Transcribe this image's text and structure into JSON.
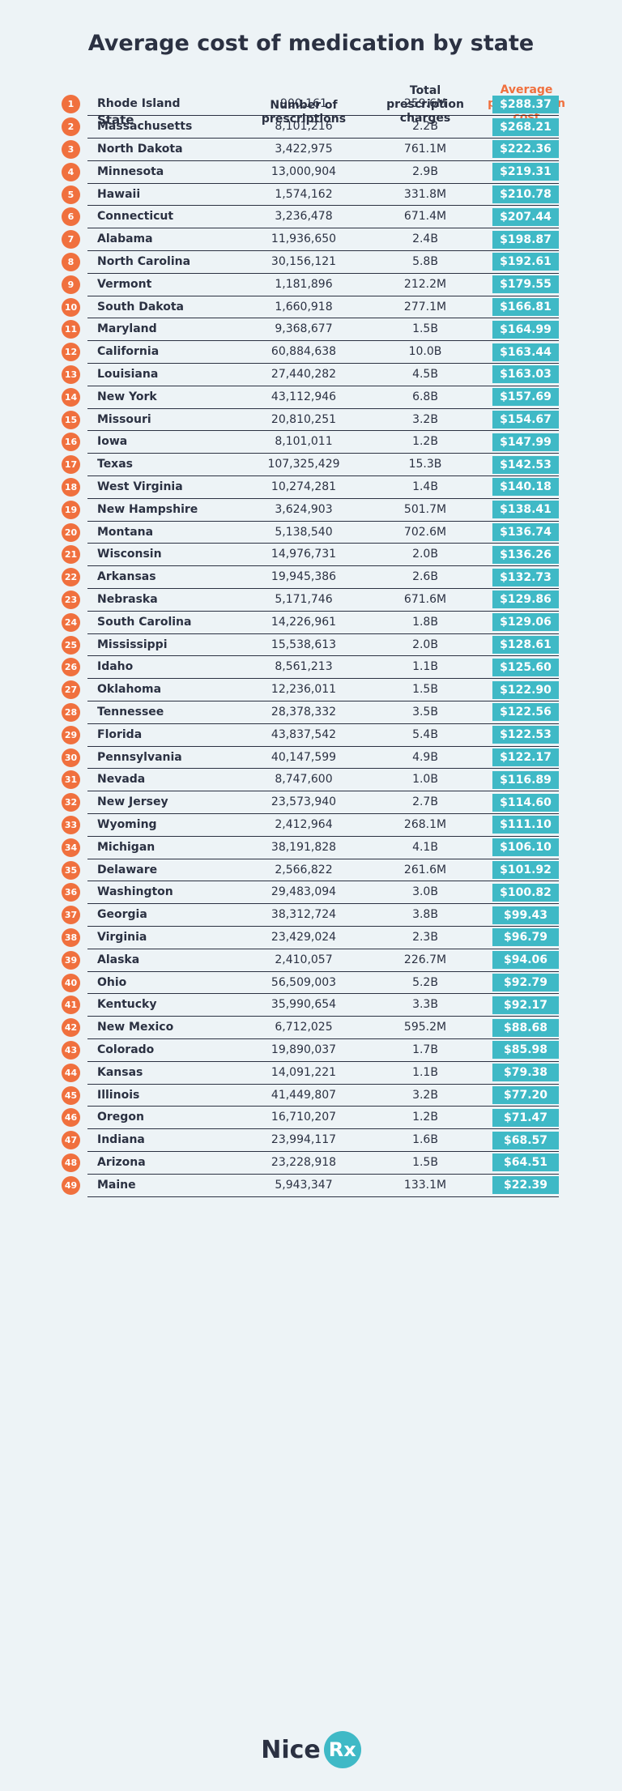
{
  "chart_data": {
    "type": "table",
    "title": "Average cost of medication by state",
    "columns": [
      "State",
      "Number of prescriptions",
      "Total prescription charges",
      "Average prescription cost"
    ],
    "header_lines": {
      "state": "State",
      "prescriptions": [
        "Number of",
        "prescriptions"
      ],
      "charges": [
        "Total",
        "prescription",
        "charges"
      ],
      "average": [
        "Average",
        "prescription",
        "cost"
      ]
    },
    "rows": [
      {
        "rank": "1",
        "state": "Rhode Island",
        "prescriptions": "900,161",
        "charges": "259.6M",
        "average": "$288.37"
      },
      {
        "rank": "2",
        "state": "Massachusetts",
        "prescriptions": "8,101,216",
        "charges": "2.2B",
        "average": "$268.21"
      },
      {
        "rank": "3",
        "state": "North Dakota",
        "prescriptions": "3,422,975",
        "charges": "761.1M",
        "average": "$222.36"
      },
      {
        "rank": "4",
        "state": "Minnesota",
        "prescriptions": "13,000,904",
        "charges": "2.9B",
        "average": "$219.31"
      },
      {
        "rank": "5",
        "state": "Hawaii",
        "prescriptions": "1,574,162",
        "charges": "331.8M",
        "average": "$210.78"
      },
      {
        "rank": "6",
        "state": "Connecticut",
        "prescriptions": "3,236,478",
        "charges": "671.4M",
        "average": "$207.44"
      },
      {
        "rank": "7",
        "state": "Alabama",
        "prescriptions": "11,936,650",
        "charges": "2.4B",
        "average": "$198.87"
      },
      {
        "rank": "8",
        "state": "North Carolina",
        "prescriptions": "30,156,121",
        "charges": "5.8B",
        "average": "$192.61"
      },
      {
        "rank": "9",
        "state": "Vermont",
        "prescriptions": "1,181,896",
        "charges": "212.2M",
        "average": "$179.55"
      },
      {
        "rank": "10",
        "state": "South Dakota",
        "prescriptions": "1,660,918",
        "charges": "277.1M",
        "average": "$166.81"
      },
      {
        "rank": "11",
        "state": "Maryland",
        "prescriptions": "9,368,677",
        "charges": "1.5B",
        "average": "$164.99"
      },
      {
        "rank": "12",
        "state": "California",
        "prescriptions": "60,884,638",
        "charges": "10.0B",
        "average": "$163.44"
      },
      {
        "rank": "13",
        "state": "Louisiana",
        "prescriptions": "27,440,282",
        "charges": "4.5B",
        "average": "$163.03"
      },
      {
        "rank": "14",
        "state": "New York",
        "prescriptions": "43,112,946",
        "charges": "6.8B",
        "average": "$157.69"
      },
      {
        "rank": "15",
        "state": "Missouri",
        "prescriptions": "20,810,251",
        "charges": "3.2B",
        "average": "$154.67"
      },
      {
        "rank": "16",
        "state": "Iowa",
        "prescriptions": "8,101,011",
        "charges": "1.2B",
        "average": "$147.99"
      },
      {
        "rank": "17",
        "state": "Texas",
        "prescriptions": "107,325,429",
        "charges": "15.3B",
        "average": "$142.53"
      },
      {
        "rank": "18",
        "state": "West Virginia",
        "prescriptions": "10,274,281",
        "charges": "1.4B",
        "average": "$140.18"
      },
      {
        "rank": "19",
        "state": "New Hampshire",
        "prescriptions": "3,624,903",
        "charges": "501.7M",
        "average": "$138.41"
      },
      {
        "rank": "20",
        "state": "Montana",
        "prescriptions": "5,138,540",
        "charges": "702.6M",
        "average": "$136.74"
      },
      {
        "rank": "21",
        "state": "Wisconsin",
        "prescriptions": "14,976,731",
        "charges": "2.0B",
        "average": "$136.26"
      },
      {
        "rank": "22",
        "state": "Arkansas",
        "prescriptions": "19,945,386",
        "charges": "2.6B",
        "average": "$132.73"
      },
      {
        "rank": "23",
        "state": "Nebraska",
        "prescriptions": "5,171,746",
        "charges": "671.6M",
        "average": "$129.86"
      },
      {
        "rank": "24",
        "state": "South Carolina",
        "prescriptions": "14,226,961",
        "charges": "1.8B",
        "average": "$129.06"
      },
      {
        "rank": "25",
        "state": "Mississippi",
        "prescriptions": "15,538,613",
        "charges": "2.0B",
        "average": "$128.61"
      },
      {
        "rank": "26",
        "state": "Idaho",
        "prescriptions": "8,561,213",
        "charges": "1.1B",
        "average": "$125.60"
      },
      {
        "rank": "27",
        "state": "Oklahoma",
        "prescriptions": "12,236,011",
        "charges": "1.5B",
        "average": "$122.90"
      },
      {
        "rank": "28",
        "state": "Tennessee",
        "prescriptions": "28,378,332",
        "charges": "3.5B",
        "average": "$122.56"
      },
      {
        "rank": "29",
        "state": "Florida",
        "prescriptions": "43,837,542",
        "charges": "5.4B",
        "average": "$122.53"
      },
      {
        "rank": "30",
        "state": "Pennsylvania",
        "prescriptions": "40,147,599",
        "charges": "4.9B",
        "average": "$122.17"
      },
      {
        "rank": "31",
        "state": "Nevada",
        "prescriptions": "8,747,600",
        "charges": "1.0B",
        "average": "$116.89"
      },
      {
        "rank": "32",
        "state": "New Jersey",
        "prescriptions": "23,573,940",
        "charges": "2.7B",
        "average": "$114.60"
      },
      {
        "rank": "33",
        "state": "Wyoming",
        "prescriptions": "2,412,964",
        "charges": "268.1M",
        "average": "$111.10"
      },
      {
        "rank": "34",
        "state": "Michigan",
        "prescriptions": "38,191,828",
        "charges": "4.1B",
        "average": "$106.10"
      },
      {
        "rank": "35",
        "state": "Delaware",
        "prescriptions": "2,566,822",
        "charges": "261.6M",
        "average": "$101.92"
      },
      {
        "rank": "36",
        "state": "Washington",
        "prescriptions": "29,483,094",
        "charges": "3.0B",
        "average": "$100.82"
      },
      {
        "rank": "37",
        "state": "Georgia",
        "prescriptions": "38,312,724",
        "charges": "3.8B",
        "average": "$99.43"
      },
      {
        "rank": "38",
        "state": "Virginia",
        "prescriptions": "23,429,024",
        "charges": "2.3B",
        "average": "$96.79"
      },
      {
        "rank": "39",
        "state": "Alaska",
        "prescriptions": "2,410,057",
        "charges": "226.7M",
        "average": "$94.06"
      },
      {
        "rank": "40",
        "state": "Ohio",
        "prescriptions": "56,509,003",
        "charges": "5.2B",
        "average": "$92.79"
      },
      {
        "rank": "41",
        "state": "Kentucky",
        "prescriptions": "35,990,654",
        "charges": "3.3B",
        "average": "$92.17"
      },
      {
        "rank": "42",
        "state": "New Mexico",
        "prescriptions": "6,712,025",
        "charges": "595.2M",
        "average": "$88.68"
      },
      {
        "rank": "43",
        "state": "Colorado",
        "prescriptions": "19,890,037",
        "charges": "1.7B",
        "average": "$85.98"
      },
      {
        "rank": "44",
        "state": "Kansas",
        "prescriptions": "14,091,221",
        "charges": "1.1B",
        "average": "$79.38"
      },
      {
        "rank": "45",
        "state": "Illinois",
        "prescriptions": "41,449,807",
        "charges": "3.2B",
        "average": "$77.20"
      },
      {
        "rank": "46",
        "state": "Oregon",
        "prescriptions": "16,710,207",
        "charges": "1.2B",
        "average": "$71.47"
      },
      {
        "rank": "47",
        "state": "Indiana",
        "prescriptions": "23,994,117",
        "charges": "1.6B",
        "average": "$68.57"
      },
      {
        "rank": "48",
        "state": "Arizona",
        "prescriptions": "23,228,918",
        "charges": "1.5B",
        "average": "$64.51"
      },
      {
        "rank": "49",
        "state": "Maine",
        "prescriptions": "5,943,347",
        "charges": "133.1M",
        "average": "$22.39"
      }
    ],
    "colors": {
      "rank_badge": "#f0703e",
      "average_cell": "#3fb9c6",
      "average_header": "#f0703e",
      "text": "#2b3142",
      "background": "#edf3f6"
    }
  },
  "brand": {
    "name_part1": "Nice",
    "name_part2": "Rx"
  }
}
